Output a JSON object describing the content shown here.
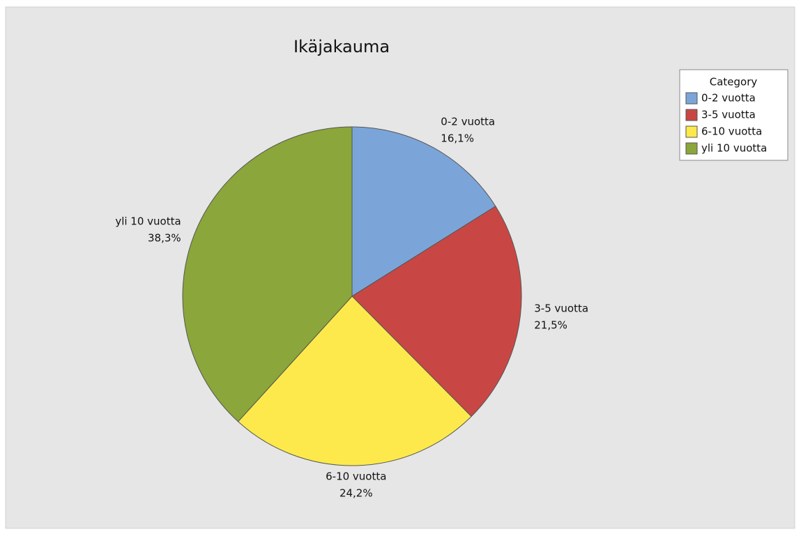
{
  "chart_data": {
    "type": "pie",
    "title": "Ikäjakauma",
    "categories": [
      "0-2 vuotta",
      "3-5 vuotta",
      "6-10 vuotta",
      "yli 10 vuotta"
    ],
    "values": [
      16.1,
      21.5,
      24.2,
      38.3
    ],
    "value_labels": [
      "16,1%",
      "21,5%",
      "24,2%",
      "38,3%"
    ],
    "colors": [
      "#7ba5d8",
      "#c84744",
      "#fde94b",
      "#8ba63a"
    ],
    "legend_title": "Category",
    "legend": "top-right"
  }
}
